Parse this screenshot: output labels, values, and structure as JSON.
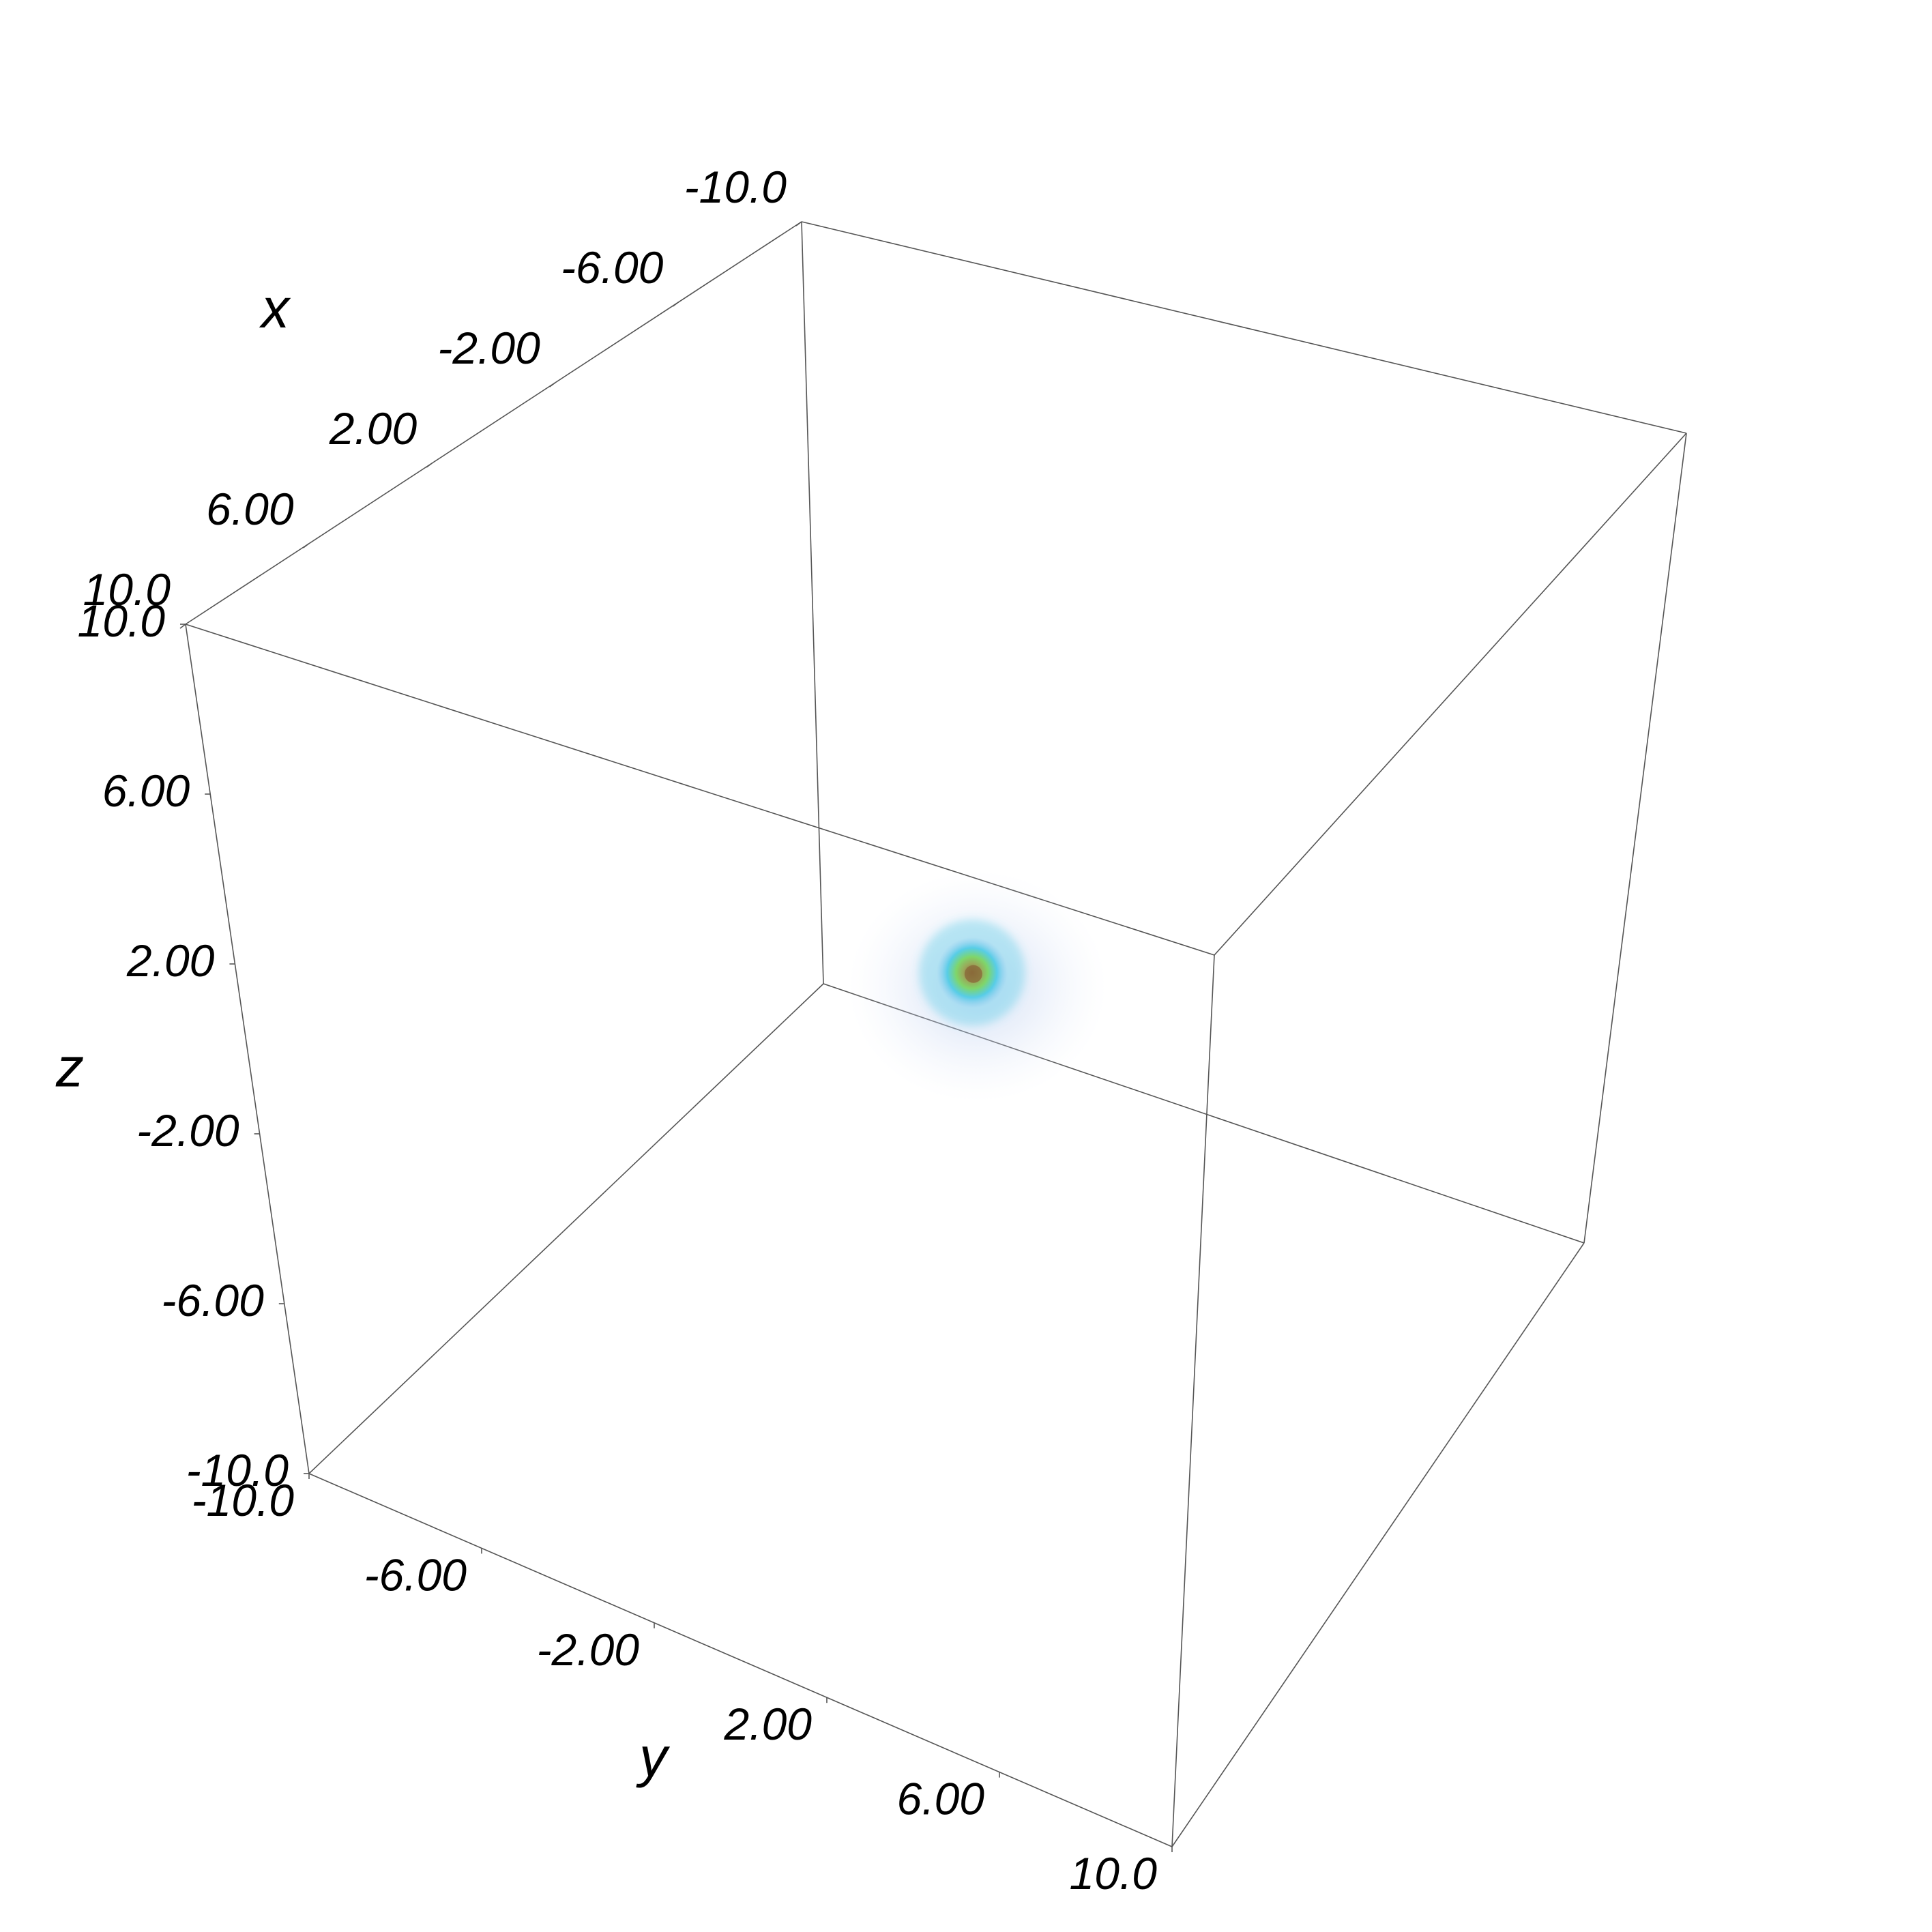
{
  "chart_data": {
    "type": "volume-render-3d",
    "axes": {
      "x": {
        "label": "x",
        "range": [
          -10.0,
          10.0
        ],
        "ticks": [
          {
            "value": -10.0,
            "label": "-10.0"
          },
          {
            "value": -6.0,
            "label": "-6.00"
          },
          {
            "value": -2.0,
            "label": "-2.00"
          },
          {
            "value": 2.0,
            "label": "2.00"
          },
          {
            "value": 6.0,
            "label": "6.00"
          },
          {
            "value": 10.0,
            "label": "10.0"
          }
        ]
      },
      "y": {
        "label": "y",
        "range": [
          -10.0,
          10.0
        ],
        "ticks": [
          {
            "value": -10.0,
            "label": "-10.0"
          },
          {
            "value": -6.0,
            "label": "-6.00"
          },
          {
            "value": -2.0,
            "label": "-2.00"
          },
          {
            "value": 2.0,
            "label": "2.00"
          },
          {
            "value": 6.0,
            "label": "6.00"
          },
          {
            "value": 10.0,
            "label": "10.0"
          }
        ]
      },
      "z": {
        "label": "z",
        "range": [
          -10.0,
          10.0
        ],
        "ticks": [
          {
            "value": -10.0,
            "label": "-10.0"
          },
          {
            "value": -6.0,
            "label": "-6.00"
          },
          {
            "value": -2.0,
            "label": "-2.00"
          },
          {
            "value": 2.0,
            "label": "2.00"
          },
          {
            "value": 6.0,
            "label": "6.00"
          },
          {
            "value": 10.0,
            "label": "10.0"
          }
        ]
      }
    },
    "blob": {
      "center": {
        "x": 0.0,
        "y": 0.0,
        "z": 0.0
      },
      "colors": {
        "core": "#8a6a3a",
        "inner": "#7fd66a",
        "middle": "#4ecbe6",
        "outer": "#a9c8ee",
        "halo": "#d9e2f5"
      }
    },
    "grid": false,
    "legend": "none"
  },
  "colors": {
    "background": "#ffffff",
    "box_edge": "#555555",
    "text": "#000000"
  }
}
